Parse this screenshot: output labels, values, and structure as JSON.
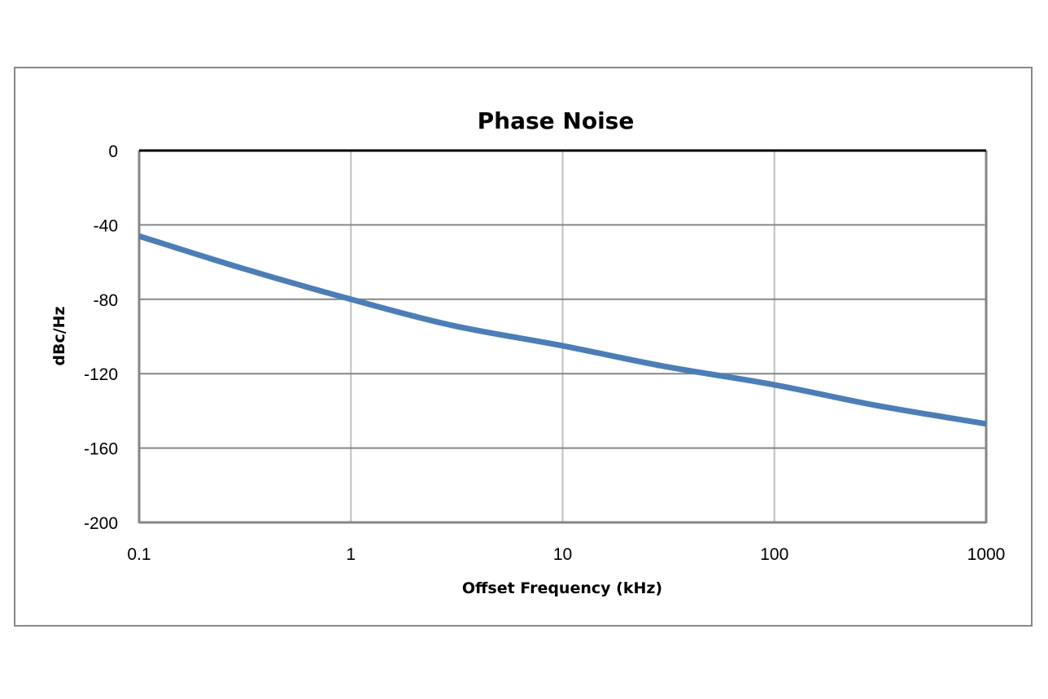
{
  "chart_data": {
    "type": "line",
    "title": "Phase Noise",
    "xlabel": "Offset Frequency (kHz)",
    "ylabel": "dBc/Hz",
    "xscale": "log",
    "xlim": [
      0.1,
      1000
    ],
    "ylim": [
      -200,
      0
    ],
    "x_ticks": [
      "0.1",
      "1",
      "10",
      "100",
      "1000"
    ],
    "y_ticks": [
      "0",
      "-40",
      "-80",
      "-120",
      "-160",
      "-200"
    ],
    "grid": true,
    "legend": null,
    "series": [
      {
        "name": "Phase Noise",
        "color": "#4a7ebb",
        "x": [
          0.1,
          0.3,
          1,
          3,
          10,
          30,
          100,
          300,
          1000
        ],
        "y": [
          -46,
          -63,
          -80,
          -94,
          -105,
          -116,
          -126,
          -137,
          -147
        ]
      }
    ]
  },
  "colors": {
    "line": "#4a7ebb",
    "grid": "#bfbfbf",
    "axis": "#868686",
    "frame": "#888888",
    "top_border": "#000000"
  }
}
